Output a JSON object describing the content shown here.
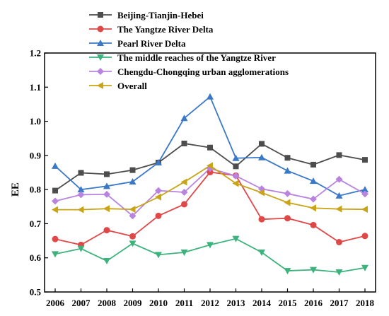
{
  "chart_data": {
    "type": "line",
    "title": "",
    "xlabel": "",
    "ylabel": "EE",
    "x": [
      "2006",
      "2007",
      "2008",
      "2009",
      "2010",
      "2011",
      "2012",
      "2013",
      "2014",
      "2015",
      "2016",
      "2017",
      "2018"
    ],
    "ylim": [
      0.5,
      1.2
    ],
    "yticks": [
      "0.5",
      "0.6",
      "0.7",
      "0.8",
      "0.9",
      "1.0",
      "1.1",
      "1.2"
    ],
    "grid": false,
    "legend_position": "top-left",
    "series": [
      {
        "name": "Beijing-Tianjin-Hebei",
        "color": "#4d4d4d",
        "marker": "square",
        "values": [
          0.797,
          0.849,
          0.845,
          0.857,
          0.879,
          0.935,
          0.923,
          0.868,
          0.934,
          0.893,
          0.873,
          0.901,
          0.887
        ]
      },
      {
        "name": "The Yangtze River Delta",
        "color": "#e04848",
        "marker": "circle",
        "values": [
          0.655,
          0.638,
          0.681,
          0.663,
          0.723,
          0.757,
          0.851,
          0.841,
          0.713,
          0.716,
          0.696,
          0.646,
          0.664
        ]
      },
      {
        "name": "Pearl River Delta",
        "color": "#3a78c8",
        "marker": "triangle-up",
        "values": [
          0.869,
          0.8,
          0.81,
          0.823,
          0.879,
          1.009,
          1.072,
          0.892,
          0.894,
          0.855,
          0.825,
          0.782,
          0.8
        ]
      },
      {
        "name": "The middle reaches of the Yangtze River",
        "color": "#3cb37c",
        "marker": "triangle-down",
        "values": [
          0.611,
          0.627,
          0.591,
          0.642,
          0.609,
          0.616,
          0.638,
          0.656,
          0.616,
          0.562,
          0.565,
          0.558,
          0.571
        ]
      },
      {
        "name": "Chengdu-Chongqing urban agglomerations",
        "color": "#b884e0",
        "marker": "diamond",
        "values": [
          0.766,
          0.785,
          0.786,
          0.723,
          0.797,
          0.792,
          0.862,
          0.84,
          0.802,
          0.788,
          0.772,
          0.83,
          0.787
        ]
      },
      {
        "name": "Overall",
        "color": "#c8a416",
        "marker": "triangle-left",
        "values": [
          0.741,
          0.741,
          0.744,
          0.742,
          0.778,
          0.822,
          0.87,
          0.818,
          0.791,
          0.762,
          0.746,
          0.743,
          0.742
        ]
      }
    ]
  }
}
